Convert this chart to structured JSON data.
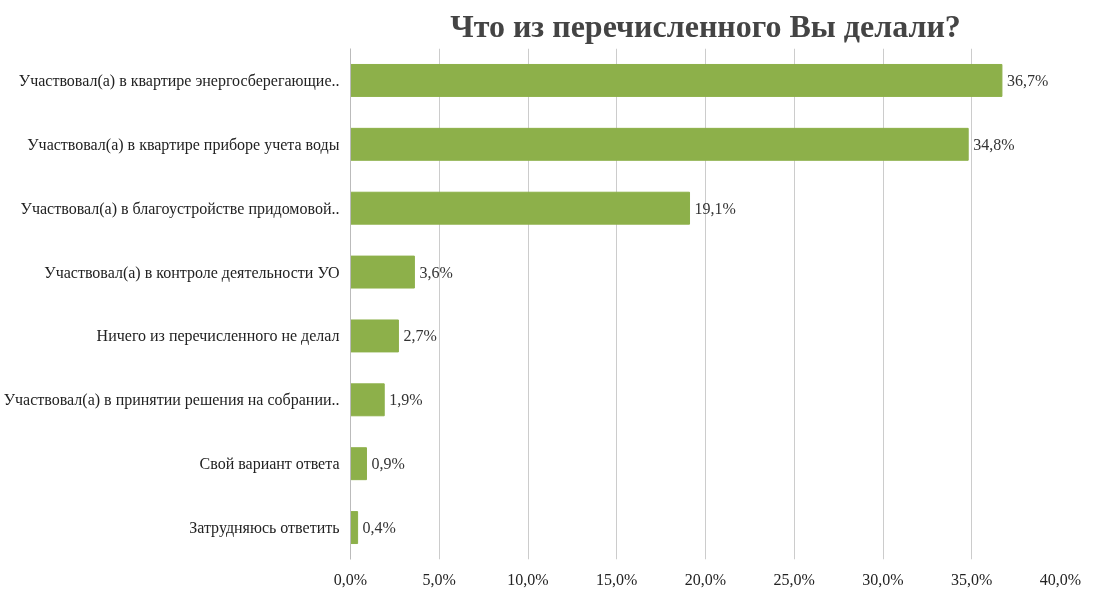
{
  "chart_data": {
    "type": "bar",
    "orientation": "horizontal",
    "title": "Что из перечисленного Вы делали?",
    "categories": [
      "Участвовал(а) в квартире энергосберегающие..",
      "Участвовал(а) в квартире приборе учета воды",
      "Участвовал(а) в благоустройстве придомовой..",
      "Участвовал(а) в контроле деятельности УО",
      "Ничего из перечисленного не делал",
      "Участвовал(а) в принятии решения на собрании..",
      "Свой вариант ответа",
      "Затрудняюсь ответить"
    ],
    "values": [
      36.7,
      34.8,
      19.1,
      3.6,
      2.7,
      1.9,
      0.9,
      0.4
    ],
    "value_labels": [
      "36,7%",
      "34,8%",
      "19,1%",
      "3,6%",
      "2,7%",
      "1,9%",
      "0,9%",
      "0,4%"
    ],
    "color": "#8db04a",
    "xlim": [
      0,
      40
    ],
    "xticks": [
      {
        "value": 0,
        "label": "0,0%"
      },
      {
        "value": 5,
        "label": "5,0%"
      },
      {
        "value": 10,
        "label": "10,0%"
      },
      {
        "value": 15,
        "label": "15,0%"
      },
      {
        "value": 20,
        "label": "20,0%"
      },
      {
        "value": 25,
        "label": "25,0%"
      },
      {
        "value": 30,
        "label": "30,0%"
      },
      {
        "value": 35,
        "label": "35,0%"
      },
      {
        "value": 40,
        "label": "40,0%"
      }
    ],
    "grid": "x"
  }
}
